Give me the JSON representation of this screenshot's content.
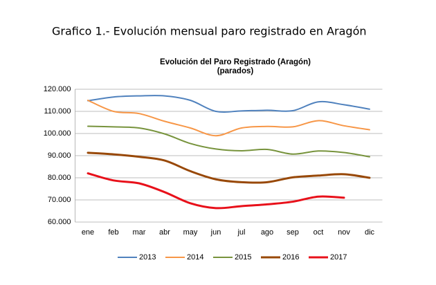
{
  "heading": "Grafico 1.- Evolución mensual paro registrado en Aragón",
  "chart_data": {
    "type": "line",
    "title": "Evolución del Paro Registrado (Aragón)",
    "subtitle": "(parados)",
    "categories": [
      "ene",
      "feb",
      "mar",
      "abr",
      "may",
      "jun",
      "jul",
      "ago",
      "sep",
      "oct",
      "nov",
      "dic"
    ],
    "series": [
      {
        "name": "2013",
        "color": "#4f81bd",
        "values": [
          114800,
          116500,
          117000,
          117000,
          115000,
          110000,
          110200,
          110500,
          110300,
          114300,
          113000,
          111000
        ]
      },
      {
        "name": "2014",
        "color": "#f79646",
        "values": [
          115000,
          110000,
          109000,
          105500,
          102500,
          99000,
          102500,
          103200,
          103000,
          105800,
          103500,
          101700
        ]
      },
      {
        "name": "2015",
        "color": "#77933c",
        "values": [
          103300,
          103000,
          102500,
          99800,
          95500,
          93000,
          92200,
          92800,
          90700,
          92100,
          91400,
          89500
        ]
      },
      {
        "name": "2016",
        "color": "#984807",
        "values": [
          91300,
          90600,
          89500,
          87800,
          83000,
          79300,
          78000,
          78000,
          80200,
          81000,
          81600,
          80000
        ]
      },
      {
        "name": "2017",
        "color": "#e8101a",
        "values": [
          82000,
          78800,
          77500,
          73500,
          68500,
          66300,
          67200,
          68000,
          69200,
          71500,
          71000,
          null
        ]
      }
    ],
    "ylim": [
      60000,
      120000
    ],
    "yticks": [
      {
        "value": 60000,
        "label": "60.000"
      },
      {
        "value": 70000,
        "label": "70.000"
      },
      {
        "value": 80000,
        "label": "80.000"
      },
      {
        "value": 90000,
        "label": "90.000"
      },
      {
        "value": 100000,
        "label": "100.000"
      },
      {
        "value": 110000,
        "label": "110.000"
      },
      {
        "value": 120000,
        "label": "120.000"
      }
    ],
    "grid": true,
    "legend": "bottom"
  }
}
